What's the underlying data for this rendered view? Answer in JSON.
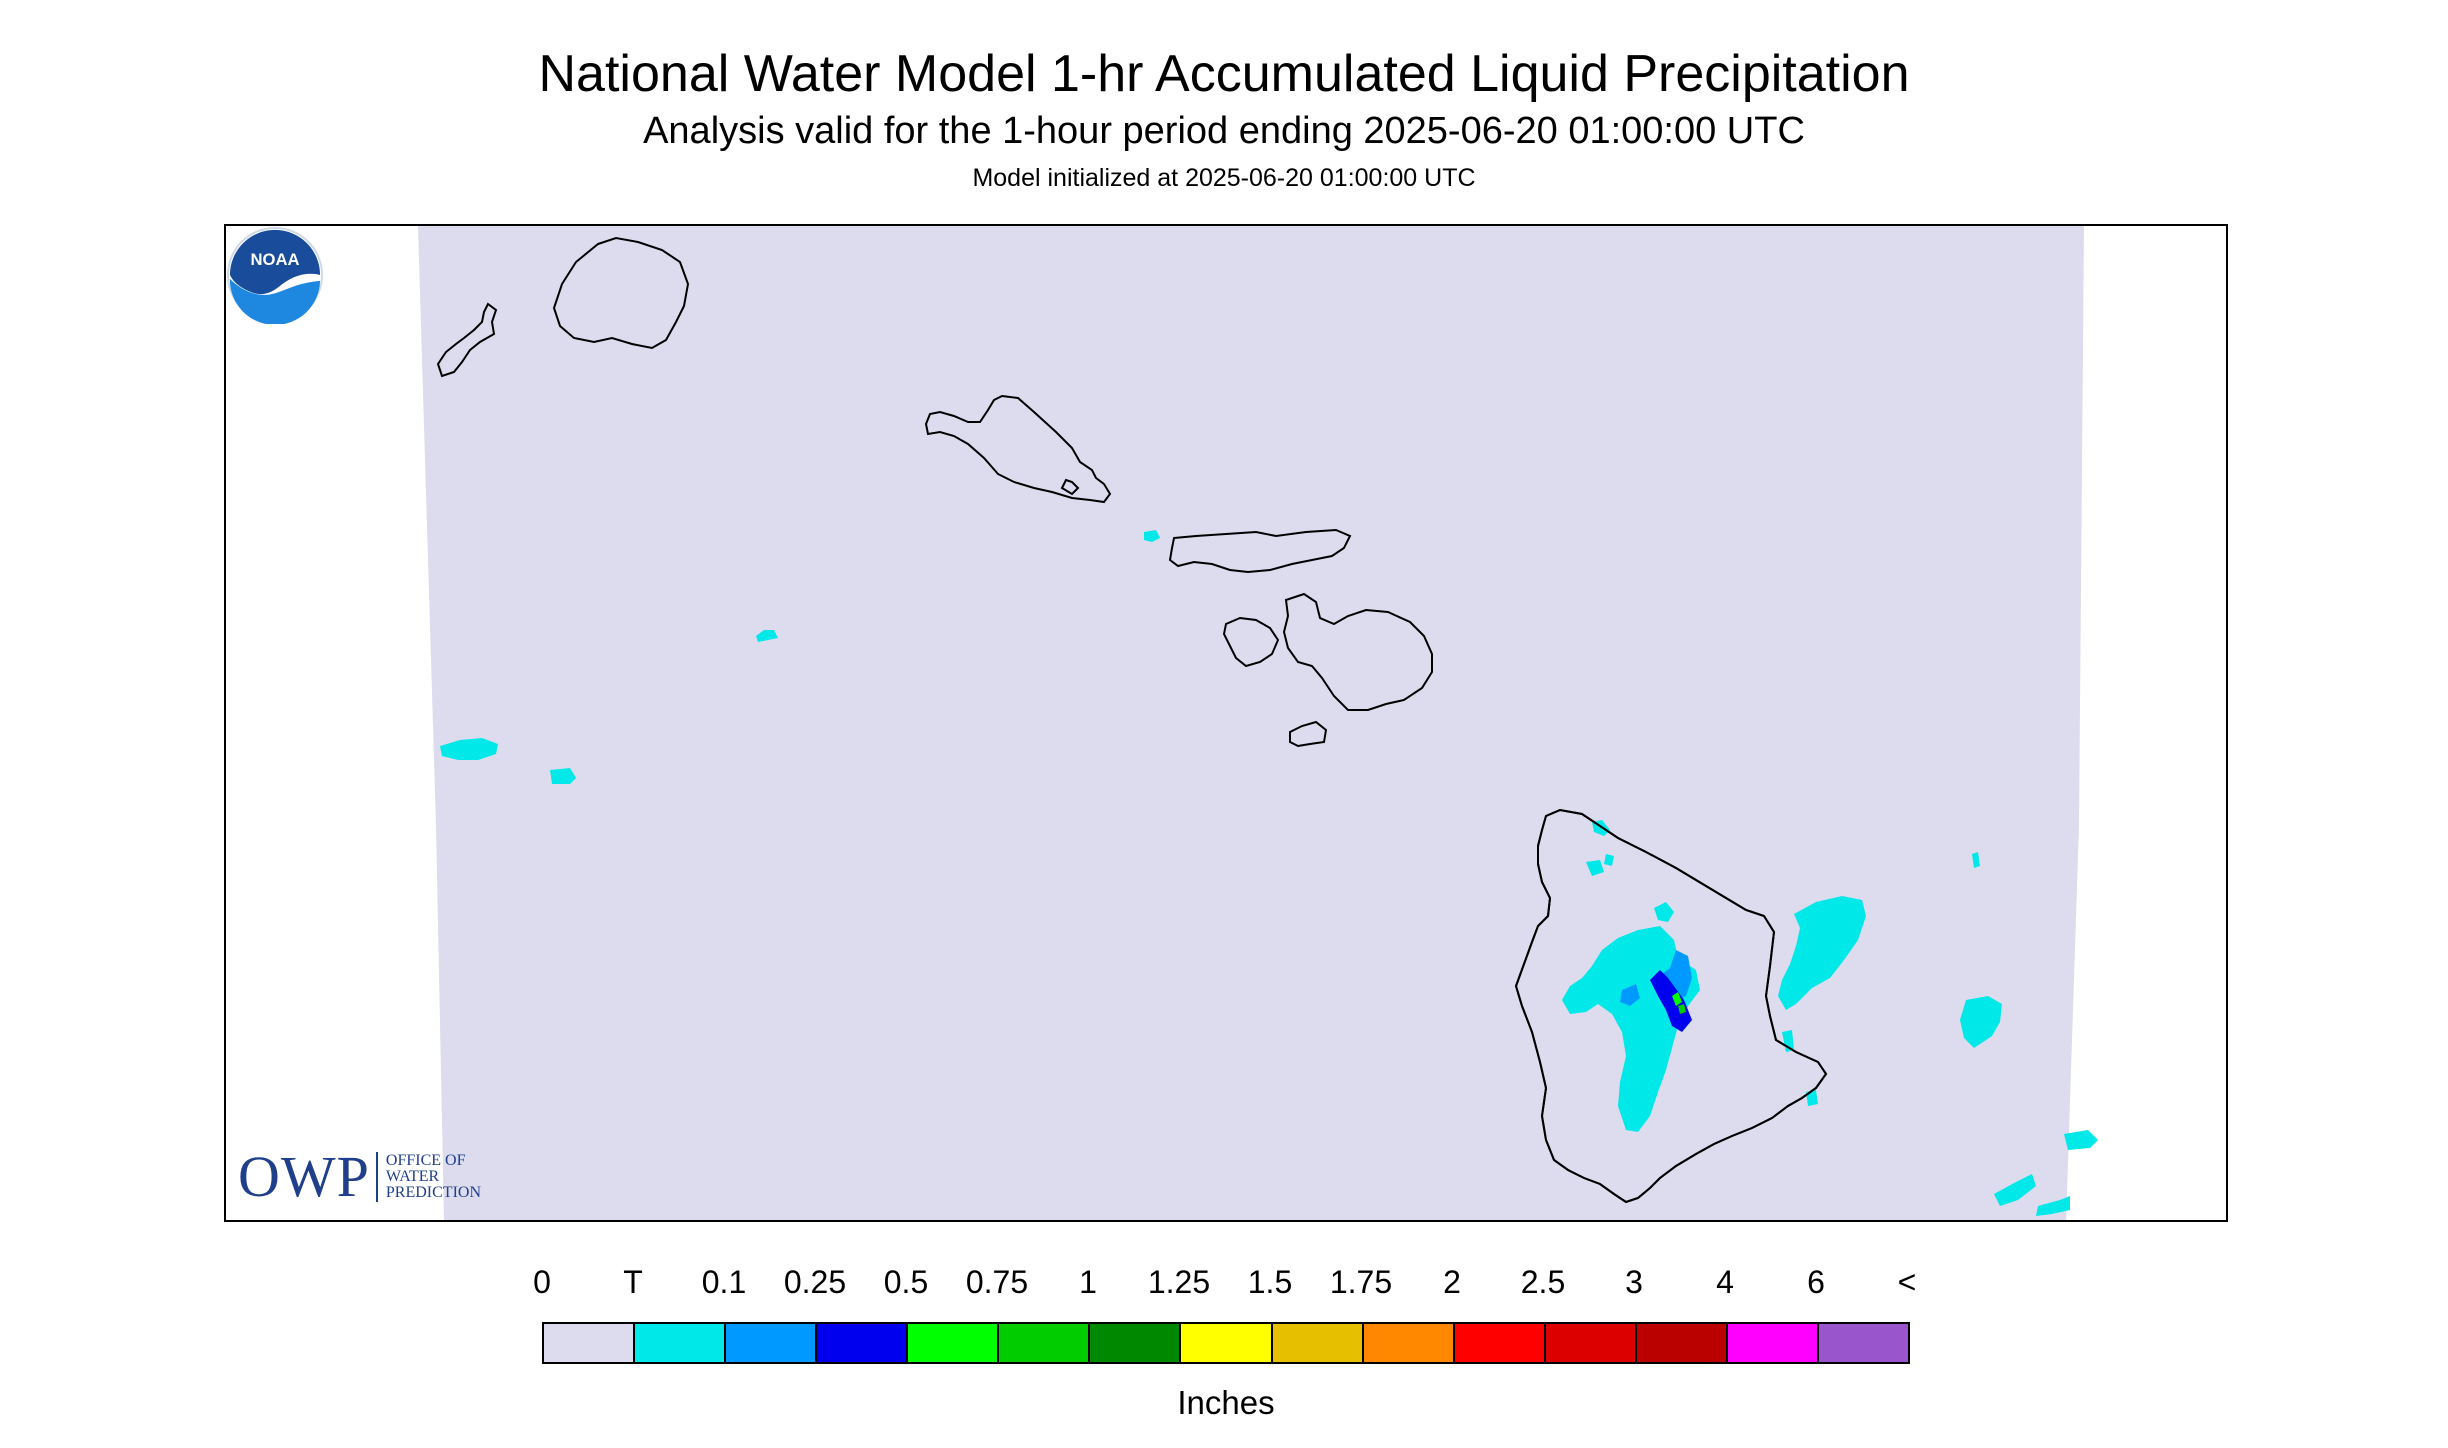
{
  "header": {
    "title": "National Water Model 1-hr Accumulated Liquid Precipitation",
    "subtitle": "Analysis valid for the 1-hour period ending 2025-06-20 01:00:00 UTC",
    "init_line": "Model initialized at 2025-06-20 01:00:00 UTC"
  },
  "map": {
    "region": "Hawaiian Islands",
    "background_color": "#dcdcee",
    "coastline_color": "#000000",
    "precip_colors": {
      "trace": "#00e8e8",
      "tenth": "#0099ff",
      "quarter": "#0000ee",
      "half": "#00ff00",
      "three_quarter": "#00cc00"
    }
  },
  "logos": {
    "owp": {
      "mark": "OWP",
      "lines": [
        "OFFICE OF",
        "WATER",
        "PREDICTION"
      ]
    },
    "noaa": {
      "text": "NOAA"
    }
  },
  "legend": {
    "labels": [
      "0",
      "T",
      "0.1",
      "0.25",
      "0.5",
      "0.75",
      "1",
      "1.25",
      "1.5",
      "1.75",
      "2",
      "2.5",
      "3",
      "4",
      "6",
      "<"
    ],
    "colors": [
      "#dcdcee",
      "#00e8e8",
      "#0099ff",
      "#0000ee",
      "#00ff00",
      "#00cc00",
      "#008800",
      "#ffff00",
      "#e6c000",
      "#ff8800",
      "#ff0000",
      "#dd0000",
      "#bb0000",
      "#ff00ff",
      "#9955cc"
    ],
    "units": "Inches"
  }
}
